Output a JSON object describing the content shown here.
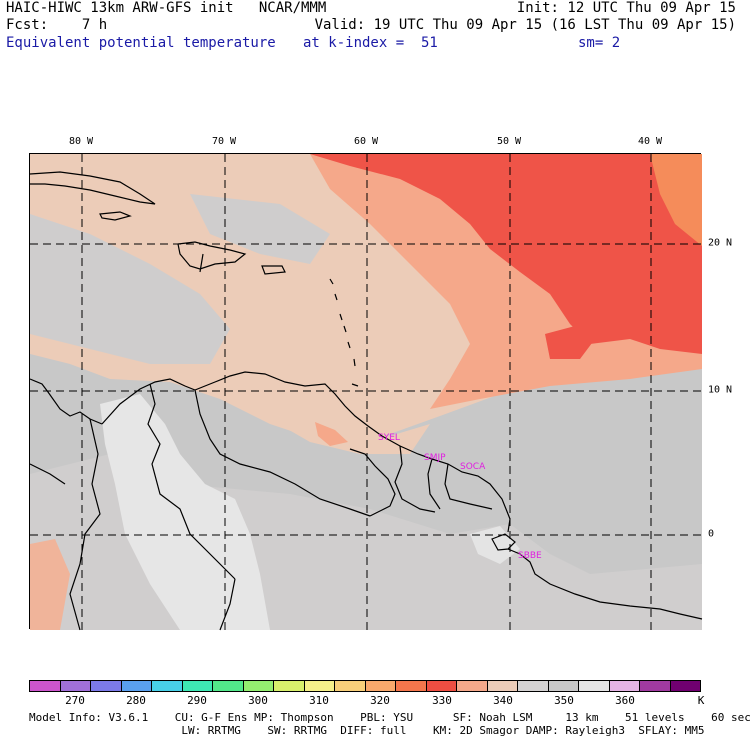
{
  "header": {
    "title": "HAIC-HIWC 13km ARW-GFS init   NCAR/MMM",
    "init": "Init: 12 UTC Thu 09 Apr 15",
    "fcst": "Fcst:    7 h",
    "valid": "Valid: 19 UTC Thu 09 Apr 15 (16 LST Thu 09 Apr 15)",
    "field": "Equivalent potential temperature",
    "level": "at k-index =  51",
    "smoothing": "sm= 2"
  },
  "colors": {
    "ocean_gray": "#c8c8c8",
    "land_gray": "#d4d2d2",
    "light_gray": "#e4e4e4",
    "tan": "#ecccb8",
    "salmon": "#f5a88a",
    "red": "#ef5448",
    "orange": "#f58c5a",
    "coast": "#000000",
    "station": "#e020e0"
  },
  "map": {
    "lon_labels": [
      "80 W",
      "70 W",
      "60 W",
      "50 W",
      "40 W"
    ],
    "lat_labels": [
      "20 N",
      "10 N",
      "0"
    ],
    "stations": [
      "SYEL",
      "SMJP",
      "SOCA",
      "SBBE"
    ]
  },
  "colorbar": {
    "colors": [
      "#cc55cc",
      "#a170d8",
      "#7c7ae9",
      "#5aa0ef",
      "#48d0e8",
      "#3ee8b4",
      "#52e88a",
      "#94ee70",
      "#d8f06c",
      "#f6f08a",
      "#f8cf7a",
      "#f8a86c",
      "#f4764c",
      "#ee4e42",
      "#f5a88a",
      "#ecccb8",
      "#d4d2d2",
      "#c8c8c8",
      "#e4e4e4",
      "#e4b4e4",
      "#a03aa0",
      "#700070"
    ],
    "labels": [
      "270",
      "280",
      "290",
      "300",
      "310",
      "320",
      "330",
      "340",
      "350",
      "360"
    ],
    "unit": "K"
  },
  "footer": {
    "line1": "Model Info: V3.6.1    CU: G-F Ens MP: Thompson    PBL: YSU      SF: Noah LSM     13 km    51 levels    60 sec",
    "line2": "                       LW: RRTMG    SW: RRTMG  DIFF: full    KM: 2D Smagor DAMP: Rayleigh3  SFLAY: MM5"
  }
}
